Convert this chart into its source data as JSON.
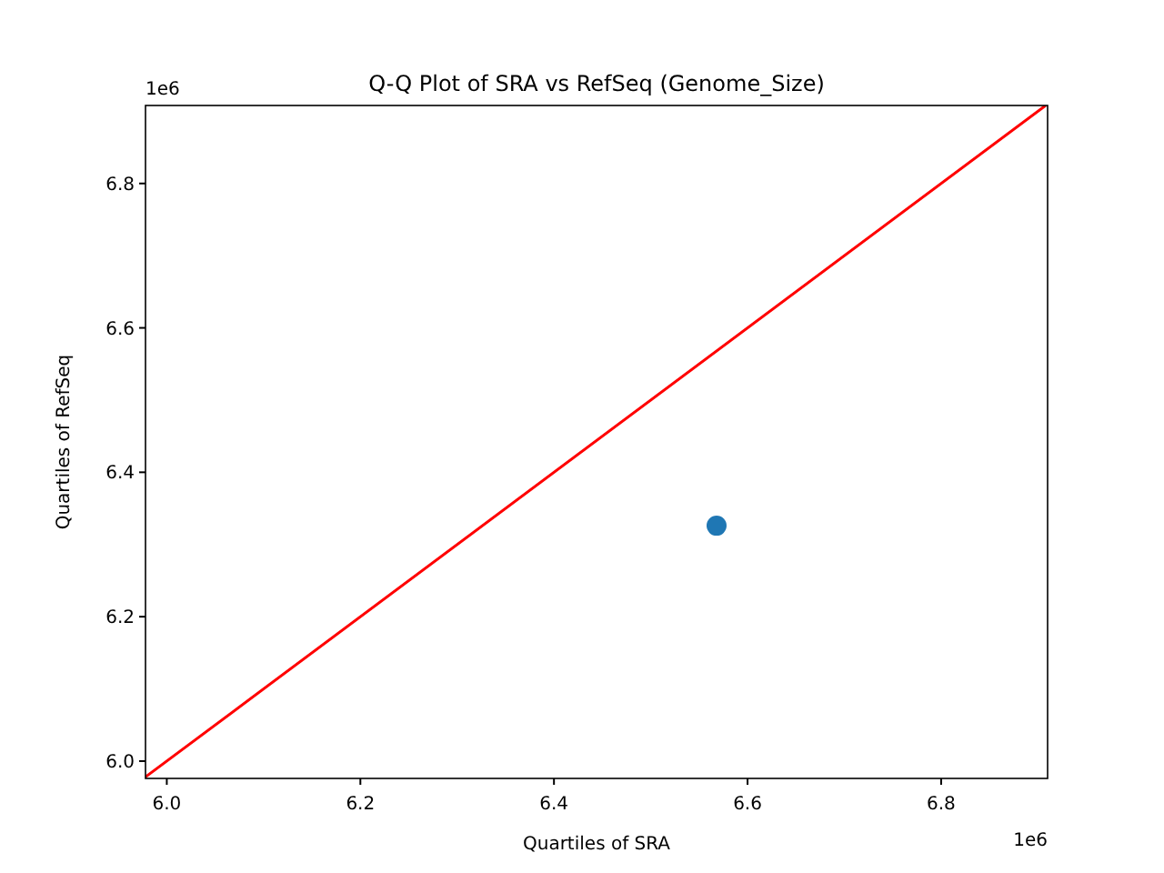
{
  "chart_data": {
    "type": "scatter",
    "title": "Q-Q Plot of SRA vs RefSeq (Genome_Size)",
    "xlabel": "Quartiles of SRA",
    "ylabel": "Quartiles of RefSeq",
    "xlim": [
      5.978,
      6.91
    ],
    "ylim": [
      5.976,
      6.908
    ],
    "xticks": [
      {
        "value": 6,
        "label": "6.0"
      },
      6.2,
      6.4,
      6.6,
      6.8
    ],
    "yticks": [
      {
        "value": 6,
        "label": "6.0"
      },
      6.2,
      6.4,
      6.6,
      6.8
    ],
    "annotations": [
      "1e6",
      "1e6"
    ],
    "series": [
      {
        "type": "scatter",
        "marker": "circle",
        "color": "#1f77b4",
        "x": [
          6.568
        ],
        "values": [
          6.326
        ]
      },
      {
        "type": "line",
        "color": "#ff0000",
        "x": [
          5.978,
          6.908
        ],
        "values": [
          5.978,
          6.908
        ]
      }
    ]
  }
}
